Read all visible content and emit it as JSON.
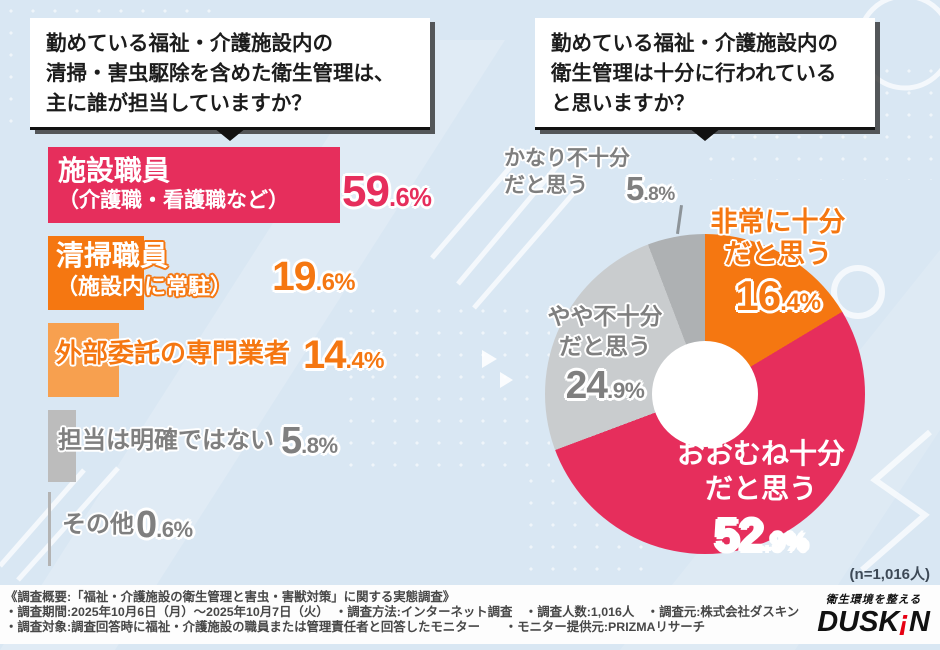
{
  "colors": {
    "pink": "#E62E5C",
    "orange": "#F57711",
    "orange_light": "#F7A04F",
    "gray_bar": "#BCBCBC",
    "gray_bar_thin": "#B3B3B3",
    "slice_gray_light": "#C9CCCE",
    "slice_gray_dark": "#AEB1B3",
    "gray_text": "#7F7F7F",
    "note_text": "#3D4956",
    "footer_text": "#474747",
    "ink": "#1C1C1C",
    "background": "#D9E7F3",
    "logo_red": "#E60012"
  },
  "questions": {
    "left_lines": [
      "勤めている福祉・介護施設内の",
      "清掃・害虫駆除を含めた衛生管理は、",
      "主に誰が担当していますか？"
    ],
    "right_lines": [
      "勤めている福祉・介護施設内の",
      "衛生管理は十分に行われている",
      "と思いますか？"
    ]
  },
  "left_chart": {
    "bars": [
      {
        "label1": "施設職員",
        "label2": "（介護職・看護職など）",
        "num": "59",
        "frac": ".6%"
      },
      {
        "label1": "清掃職員",
        "label2": "（施設内に常駐）",
        "num": "19",
        "frac": ".6%"
      },
      {
        "label1": "外部委託の専門業者",
        "num": "14",
        "frac": ".4%"
      },
      {
        "label1": "担当は明確ではない",
        "num": "5",
        "frac": ".8%"
      },
      {
        "label1": "その他",
        "num": "0",
        "frac": ".6%"
      }
    ]
  },
  "right_chart": {
    "callouts": [
      {
        "line1": "かなり不十分",
        "line2": "だと思う",
        "num": "5",
        "frac": ".8%"
      },
      {
        "line1": "非常に十分",
        "line2": "だと思う",
        "num": "16",
        "frac": ".4%"
      },
      {
        "line1": "やや不十分",
        "line2": "だと思う",
        "num": "24",
        "frac": ".9%"
      },
      {
        "line1": "おおむね十分",
        "line2": "だと思う",
        "num": "52",
        "frac": ".9%"
      }
    ],
    "note": "(n=1,016人)"
  },
  "chart_data": [
    {
      "type": "bar",
      "orientation": "horizontal",
      "title": "勤めている福祉・介護施設内の清掃・害虫駆除を含めた衛生管理は、主に誰が担当していますか？",
      "categories": [
        "施設職員（介護職・看護職など）",
        "清掃職員（施設内に常駐）",
        "外部委託の専門業者",
        "担当は明確ではない",
        "その他"
      ],
      "values": [
        59.6,
        19.6,
        14.4,
        5.8,
        0.6
      ],
      "colors": [
        "#E62E5C",
        "#F57711",
        "#F7A04F",
        "#BCBCBC",
        "#B3B3B3"
      ],
      "unit": "%",
      "xlim": [
        0,
        100
      ],
      "grid": false,
      "value_labels": [
        "59.6%",
        "19.6%",
        "14.4%",
        "5.8%",
        "0.6%"
      ]
    },
    {
      "type": "pie",
      "donut": true,
      "title": "勤めている福祉・介護施設内の衛生管理は十分に行われていると思いますか？",
      "labels": [
        "非常に十分だと思う",
        "おおむね十分だと思う",
        "やや不十分だと思う",
        "かなり不十分だと思う"
      ],
      "values": [
        16.4,
        52.9,
        24.9,
        5.8
      ],
      "colors": [
        "#F57711",
        "#E62E5C",
        "#C9CCCE",
        "#AEB1B3"
      ],
      "start_angle_deg": 0,
      "direction": "clockwise",
      "note": "(n=1,016人)"
    }
  ],
  "footer": {
    "line1": "《調査概要:「福祉・介護施設の衛生管理と害虫・害獣対策」に関する実態調査》",
    "line2": "・調査期間:2025年10月6日（月）～2025年10月7日（火）　・調査方法:インターネット調査　・調査人数:1,016人　・調査元:株式会社ダスキン",
    "line3": "・調査対象:調査回答時に福祉・介護施設の職員または管理責任者と回答したモニター　　・モニター提供元:PRIZMAリサーチ"
  },
  "logo": {
    "tagline": "衛生環境を整える",
    "brand_prefix": "DUSK",
    "brand_mark": "!",
    "brand_suffix": "N"
  }
}
